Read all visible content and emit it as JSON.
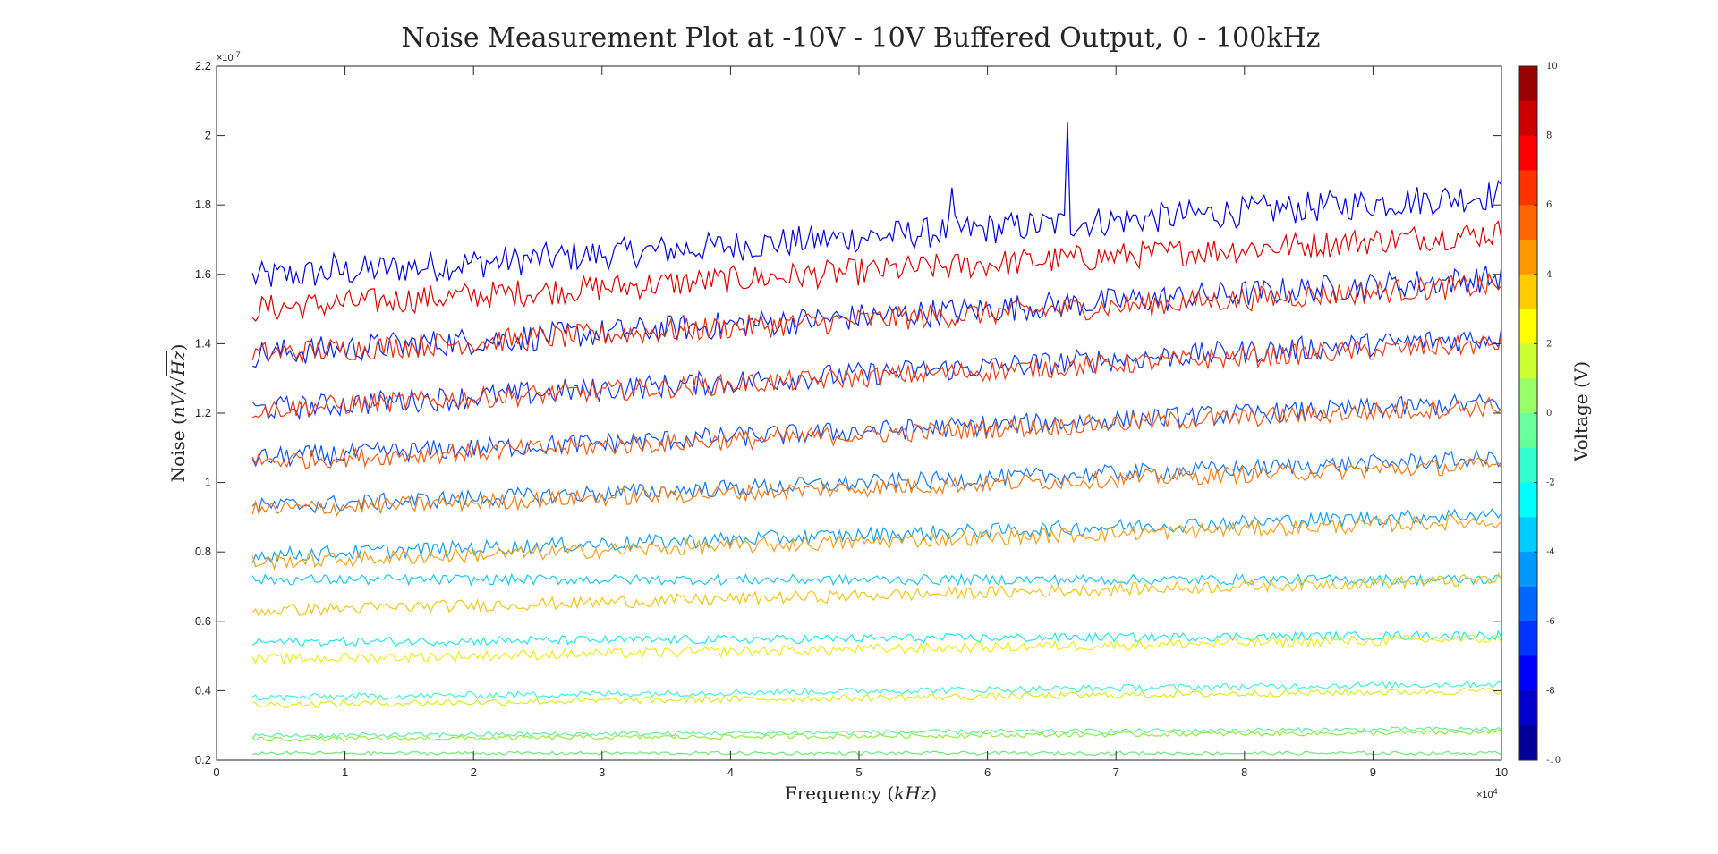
{
  "chart_data": {
    "type": "line",
    "title": "Noise Measurement Plot at -10V - 10V Buffered Output, 0 - 100kHz",
    "xlabel_text": "Frequency",
    "xlabel_unit": "kHz",
    "ylabel_text": "Noise",
    "ylabel_unit_prefix": "nV/",
    "ylabel_unit_radicand": "Hz",
    "x_multiplier": "×10",
    "x_exponent": "4",
    "y_multiplier": "×10",
    "y_exponent": "-7",
    "xlim": [
      0,
      10
    ],
    "ylim": [
      0.2,
      2.2
    ],
    "x_ticks": [
      "0",
      "1",
      "2",
      "3",
      "4",
      "5",
      "6",
      "7",
      "8",
      "9",
      "10"
    ],
    "y_ticks": [
      "0.2",
      "0.4",
      "0.6",
      "0.8",
      "1",
      "1.2",
      "1.4",
      "1.6",
      "1.8",
      "2",
      "2.2"
    ],
    "grid": false,
    "x_start": 0.28,
    "x_end": 10,
    "colorbar": {
      "label": "Voltage (V)",
      "range": [
        -10,
        10
      ],
      "ticks": [
        "10",
        "8",
        "6",
        "4",
        "2",
        "0",
        "-2",
        "-4",
        "-6",
        "-8",
        "-10"
      ]
    },
    "series": [
      {
        "voltage": -10,
        "color": "#0000dd",
        "start": 1.59,
        "end": 1.83,
        "amp": 0.045
      },
      {
        "voltage": 10,
        "color": "#dd0000",
        "start": 1.5,
        "end": 1.72,
        "amp": 0.04
      },
      {
        "voltage": -9,
        "color": "#0a24e8",
        "start": 1.37,
        "end": 1.59,
        "amp": 0.04
      },
      {
        "voltage": 9,
        "color": "#e42a08",
        "start": 1.37,
        "end": 1.57,
        "amp": 0.035
      },
      {
        "voltage": -8,
        "color": "#1038ee",
        "start": 1.21,
        "end": 1.42,
        "amp": 0.035
      },
      {
        "voltage": 8,
        "color": "#ee3a10",
        "start": 1.21,
        "end": 1.4,
        "amp": 0.03
      },
      {
        "voltage": -7,
        "color": "#1050f2",
        "start": 1.07,
        "end": 1.23,
        "amp": 0.03
      },
      {
        "voltage": 7,
        "color": "#f25a10",
        "start": 1.06,
        "end": 1.22,
        "amp": 0.028
      },
      {
        "voltage": -6,
        "color": "#1478f4",
        "start": 0.93,
        "end": 1.07,
        "amp": 0.025
      },
      {
        "voltage": 6,
        "color": "#f47a10",
        "start": 0.92,
        "end": 1.05,
        "amp": 0.025
      },
      {
        "voltage": -5,
        "color": "#14a0f6",
        "start": 0.79,
        "end": 0.91,
        "amp": 0.022
      },
      {
        "voltage": 5,
        "color": "#f6a010",
        "start": 0.77,
        "end": 0.89,
        "amp": 0.022
      },
      {
        "voltage": -4,
        "color": "#18c8f6",
        "start": 0.72,
        "end": 0.72,
        "amp": 0.015
      },
      {
        "voltage": 4,
        "color": "#f2c410",
        "start": 0.63,
        "end": 0.72,
        "amp": 0.018
      },
      {
        "voltage": -3,
        "color": "#20e8ec",
        "start": 0.54,
        "end": 0.56,
        "amp": 0.013
      },
      {
        "voltage": 3,
        "color": "#f0ec10",
        "start": 0.49,
        "end": 0.55,
        "amp": 0.015
      },
      {
        "voltage": -2,
        "color": "#40f4d4",
        "start": 0.38,
        "end": 0.42,
        "amp": 0.01
      },
      {
        "voltage": 2,
        "color": "#d4f014",
        "start": 0.36,
        "end": 0.4,
        "amp": 0.01
      },
      {
        "voltage": -1,
        "color": "#60f0a0",
        "start": 0.27,
        "end": 0.29,
        "amp": 0.007
      },
      {
        "voltage": 1,
        "color": "#90ec40",
        "start": 0.26,
        "end": 0.28,
        "amp": 0.007
      },
      {
        "voltage": 0,
        "color": "#6ce878",
        "start": 0.22,
        "end": 0.22,
        "amp": 0.005
      }
    ],
    "spikes": [
      {
        "series_voltage": -10,
        "x": 0.92,
        "y": 1.66
      },
      {
        "series_voltage": -10,
        "x": 5.73,
        "y": 1.85
      },
      {
        "series_voltage": -10,
        "x": 6.63,
        "y": 2.04
      }
    ]
  }
}
